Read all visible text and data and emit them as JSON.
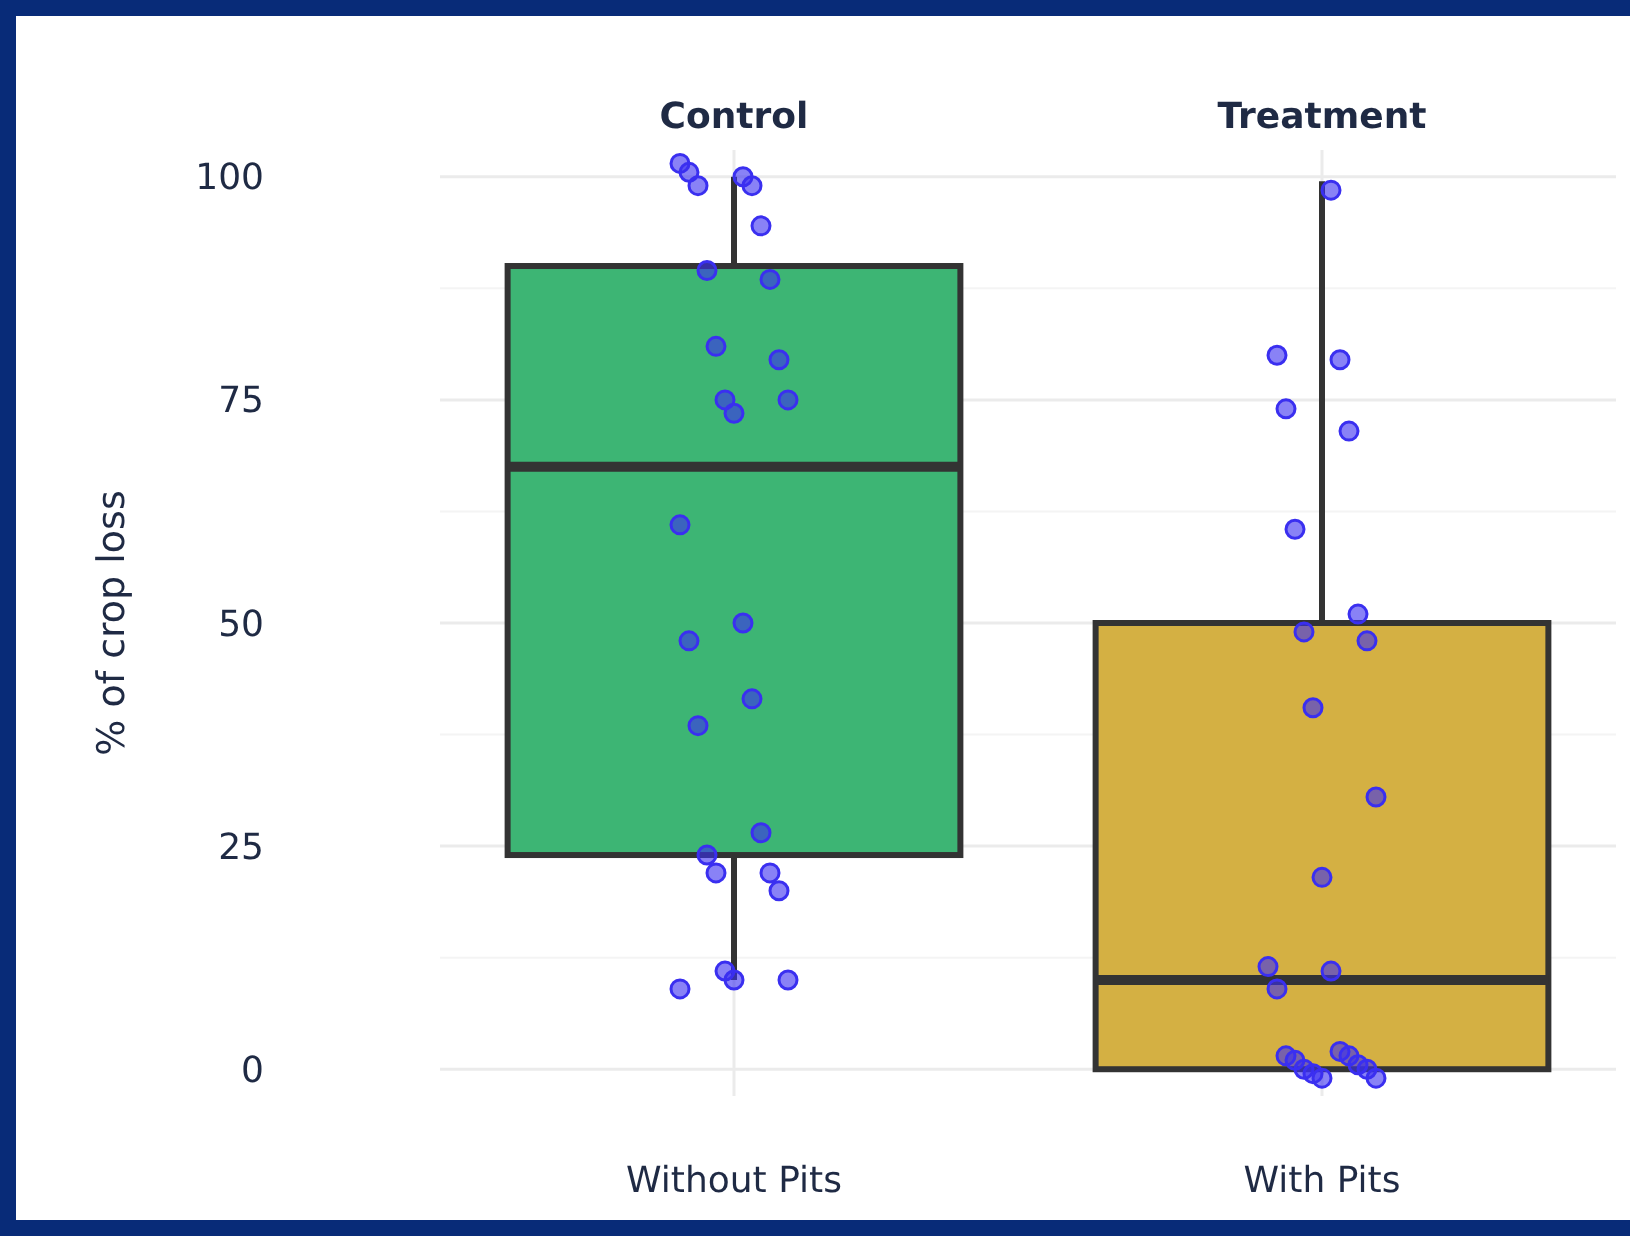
{
  "chart_data": {
    "type": "box",
    "categories": [
      "Without Pits",
      "With Pits"
    ],
    "ylabel": "% of crop loss",
    "ylim": [
      -3,
      103
    ],
    "yticks": [
      0,
      25,
      50,
      75,
      100
    ],
    "grid": true,
    "colors": [
      "#3db574",
      "#d4b043"
    ],
    "boxes": [
      {
        "low": 10,
        "q1": 24,
        "median": 67.5,
        "q3": 90,
        "high": 100
      },
      {
        "low": 0,
        "q1": 0,
        "median": 10,
        "q3": 50,
        "high": 99.5
      }
    ],
    "annotations": [
      "Control",
      "Treatment"
    ],
    "series": [
      {
        "type": "scatter",
        "color": "#3a2ff0",
        "marker": "circle",
        "x": [
          "Without Pits",
          "Without Pits",
          "Without Pits",
          "Without Pits",
          "Without Pits",
          "Without Pits",
          "Without Pits",
          "Without Pits",
          "Without Pits",
          "Without Pits",
          "Without Pits",
          "Without Pits",
          "Without Pits",
          "Without Pits",
          "Without Pits",
          "Without Pits",
          "Without Pits",
          "Without Pits",
          "Without Pits",
          "Without Pits",
          "Without Pits",
          "Without Pits",
          "Without Pits",
          "Without Pits",
          "Without Pits",
          "Without Pits",
          "Without Pits",
          "With Pits",
          "With Pits",
          "With Pits",
          "With Pits",
          "With Pits",
          "With Pits",
          "With Pits",
          "With Pits",
          "With Pits",
          "With Pits",
          "With Pits",
          "With Pits",
          "With Pits",
          "With Pits",
          "With Pits",
          "With Pits",
          "With Pits",
          "With Pits",
          "With Pits",
          "With Pits",
          "With Pits",
          "With Pits",
          "With Pits",
          "With Pits",
          "With Pits"
        ],
        "values": [
          101.5,
          100,
          100.5,
          99,
          99,
          94.5,
          89.5,
          88.5,
          81,
          79.5,
          75,
          75,
          73.5,
          61,
          50,
          48,
          41.5,
          38.5,
          26.5,
          24,
          22,
          22,
          20,
          11,
          10,
          10,
          9,
          98.5,
          80,
          79.5,
          74,
          71.5,
          60.5,
          51,
          49,
          48,
          40.5,
          30.5,
          21.5,
          11.5,
          11,
          9,
          2,
          1.5,
          1.5,
          1,
          0.5,
          0,
          0,
          -0.5,
          -1,
          -1
        ]
      }
    ]
  }
}
